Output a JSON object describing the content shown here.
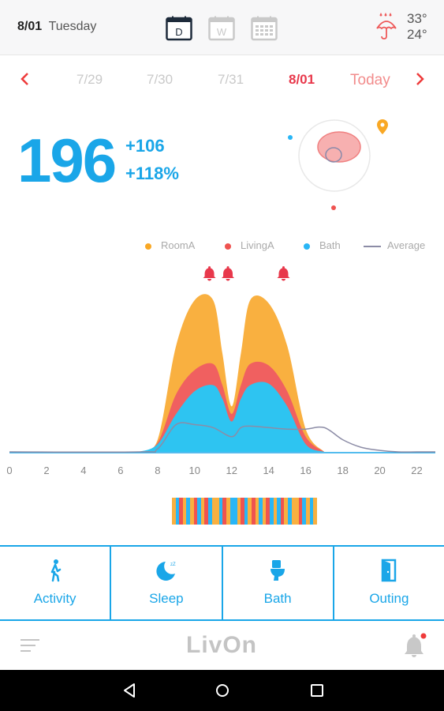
{
  "header": {
    "date": "8/01",
    "weekday": "Tuesday",
    "view_buttons": [
      {
        "label": "D",
        "selected": true
      },
      {
        "label": "W",
        "selected": false
      },
      {
        "label": "",
        "selected": false
      }
    ],
    "weather_icon": "rain-umbrella-icon",
    "temp_high": "33°",
    "temp_low": "24°"
  },
  "datenav": {
    "dates": [
      "7/29",
      "7/30",
      "7/31",
      "8/01"
    ],
    "current": "8/01",
    "today_label": "Today"
  },
  "stats": {
    "total": "196",
    "delta_abs": "+106",
    "delta_pct": "+118%"
  },
  "legend": [
    {
      "name": "RoomA",
      "color": "#f9a825"
    },
    {
      "name": "LivingA",
      "color": "#ef5350"
    },
    {
      "name": "Bath",
      "color": "#29b6f6"
    },
    {
      "name": "Average",
      "color": "#8c8ca6"
    }
  ],
  "chart_data": {
    "type": "area",
    "x_ticks": [
      "0",
      "2",
      "4",
      "6",
      "8",
      "10",
      "12",
      "14",
      "16",
      "18",
      "20",
      "22"
    ],
    "xlim": [
      0,
      23
    ],
    "alert_hours": [
      10.8,
      11.8,
      14.8
    ],
    "series": [
      {
        "name": "Bath",
        "color": "#2ec4f1",
        "x": [
          7,
          8,
          9,
          10,
          11,
          11.5,
          12,
          12.5,
          13,
          14,
          15,
          16,
          17
        ],
        "y": [
          0,
          5,
          25,
          40,
          44,
          35,
          20,
          35,
          44,
          45,
          30,
          5,
          0
        ]
      },
      {
        "name": "LivingA",
        "color": "#f06060",
        "x": [
          7,
          8,
          9,
          10,
          11,
          11.5,
          12,
          12.5,
          13,
          14,
          15,
          16,
          17
        ],
        "y": [
          0,
          6,
          38,
          54,
          58,
          44,
          25,
          44,
          58,
          57,
          40,
          10,
          0
        ]
      },
      {
        "name": "RoomA",
        "color": "#f9b040",
        "x": [
          7,
          8,
          9,
          10,
          11,
          11.5,
          12,
          12.5,
          13,
          14,
          15,
          16,
          17
        ],
        "y": [
          0,
          8,
          70,
          100,
          100,
          65,
          30,
          65,
          100,
          98,
          70,
          15,
          0
        ]
      },
      {
        "name": "Average",
        "color": "#8c8ca6",
        "x": [
          0,
          7,
          8,
          9,
          10,
          11,
          12,
          12.5,
          13,
          14,
          15,
          16,
          17,
          18,
          19,
          20,
          21,
          22,
          23
        ],
        "y": [
          0,
          0,
          2,
          18,
          18,
          16,
          10,
          16,
          17,
          16,
          15,
          15,
          16,
          8,
          3,
          1,
          0,
          0,
          0
        ]
      }
    ]
  },
  "activity_strip": [
    "#f9b040",
    "#29b6f6",
    "#ef5350",
    "#f9b040",
    "#29b6f6",
    "#f9b040",
    "#ef5350",
    "#29b6f6",
    "#f9b040",
    "#ef5350",
    "#29b6f6",
    "#f9b040",
    "#f9b040",
    "#29b6f6",
    "#ef5350",
    "#f9b040",
    "#29b6f6",
    "#29b6f6",
    "#f9b040",
    "#ef5350",
    "#29b6f6",
    "#f9b040",
    "#ef5350",
    "#f9b040",
    "#29b6f6",
    "#f9b040",
    "#ef5350",
    "#29b6f6",
    "#f9b040",
    "#29b6f6",
    "#ef5350",
    "#f9b040",
    "#29b6f6",
    "#f9b040",
    "#f9b040",
    "#ef5350",
    "#29b6f6",
    "#f9b040",
    "#29b6f6",
    "#f9b040"
  ],
  "tabs": [
    {
      "label": "Activity",
      "icon": "walking-person-icon"
    },
    {
      "label": "Sleep",
      "icon": "moon-sleep-icon"
    },
    {
      "label": "Bath",
      "icon": "toilet-icon"
    },
    {
      "label": "Outing",
      "icon": "door-icon"
    }
  ],
  "bottom": {
    "logo": "LivOn",
    "menu_icon": "menu-icon",
    "bell_icon": "bell-icon"
  },
  "colors": {
    "accent": "#1aa6e8",
    "alert": "#e8384b"
  }
}
